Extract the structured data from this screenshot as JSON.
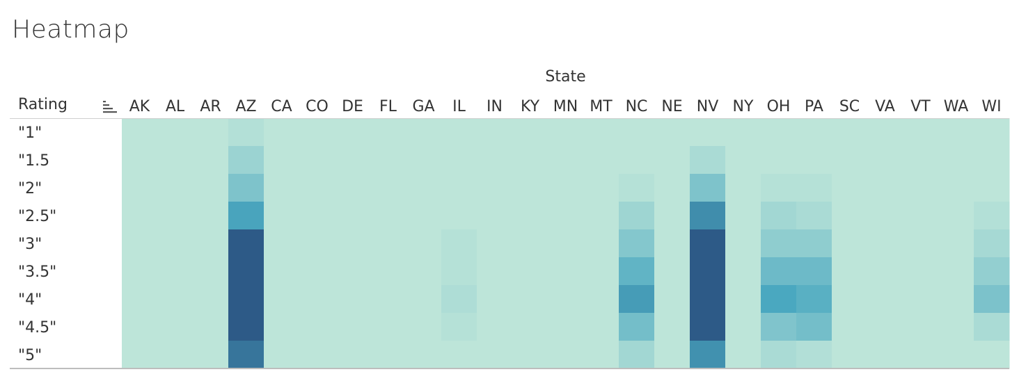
{
  "chart_data": {
    "type": "heatmap",
    "title": "Heatmap",
    "column_group_label": "State",
    "row_header": "Rating",
    "columns": [
      "AK",
      "AL",
      "AR",
      "AZ",
      "CA",
      "CO",
      "DE",
      "FL",
      "GA",
      "IL",
      "IN",
      "KY",
      "MN",
      "MT",
      "NC",
      "NE",
      "NV",
      "NY",
      "OH",
      "PA",
      "SC",
      "VA",
      "VT",
      "WA",
      "WI"
    ],
    "rows": [
      "\"1\"",
      "\"1.5",
      "\"2\"",
      "\"2.5\"",
      "\"3\"",
      "\"3.5\"",
      "\"4\"",
      "\"4.5\"",
      "\"5\""
    ],
    "color_low": "#bde5d9",
    "color_mid": "#4aa8c0",
    "color_high": "#2d5a87",
    "intensity_scale": [
      0,
      1
    ],
    "values": [
      [
        0,
        0,
        0,
        0.05,
        0,
        0,
        0,
        0,
        0,
        0,
        0,
        0,
        0,
        0,
        0,
        0,
        0,
        0,
        0,
        0,
        0,
        0,
        0,
        0,
        0
      ],
      [
        0,
        0,
        0,
        0.18,
        0,
        0,
        0,
        0,
        0,
        0,
        0,
        0,
        0,
        0,
        0,
        0,
        0.1,
        0,
        0,
        0,
        0,
        0,
        0,
        0,
        0
      ],
      [
        0,
        0,
        0,
        0.33,
        0,
        0,
        0,
        0,
        0,
        0,
        0,
        0,
        0,
        0,
        0.04,
        0,
        0.33,
        0,
        0.04,
        0.04,
        0,
        0,
        0,
        0,
        0
      ],
      [
        0,
        0,
        0,
        0.62,
        0,
        0,
        0,
        0,
        0,
        0,
        0,
        0,
        0,
        0,
        0.16,
        0,
        0.74,
        0,
        0.14,
        0.1,
        0,
        0,
        0,
        0,
        0.05
      ],
      [
        0,
        0,
        0,
        1.0,
        0,
        0,
        0,
        0,
        0,
        0.04,
        0,
        0,
        0,
        0,
        0.3,
        0,
        1.0,
        0,
        0.24,
        0.24,
        0,
        0,
        0,
        0,
        0.12
      ],
      [
        0,
        0,
        0,
        1.0,
        0,
        0,
        0,
        0,
        0,
        0.04,
        0,
        0,
        0,
        0,
        0.48,
        0,
        1.0,
        0,
        0.42,
        0.42,
        0,
        0,
        0,
        0,
        0.22
      ],
      [
        0,
        0,
        0,
        1.0,
        0,
        0,
        0,
        0,
        0,
        0.08,
        0,
        0,
        0,
        0,
        0.66,
        0,
        1.0,
        0,
        0.6,
        0.52,
        0,
        0,
        0,
        0,
        0.34
      ],
      [
        0,
        0,
        0,
        1.0,
        0,
        0,
        0,
        0,
        0,
        0.04,
        0,
        0,
        0,
        0,
        0.38,
        0,
        1.0,
        0,
        0.32,
        0.38,
        0,
        0,
        0,
        0,
        0.1
      ],
      [
        0,
        0,
        0,
        0.86,
        0,
        0,
        0,
        0,
        0,
        0,
        0,
        0,
        0,
        0,
        0.14,
        0,
        0.72,
        0,
        0.1,
        0.06,
        0,
        0,
        0,
        0,
        0
      ]
    ]
  }
}
